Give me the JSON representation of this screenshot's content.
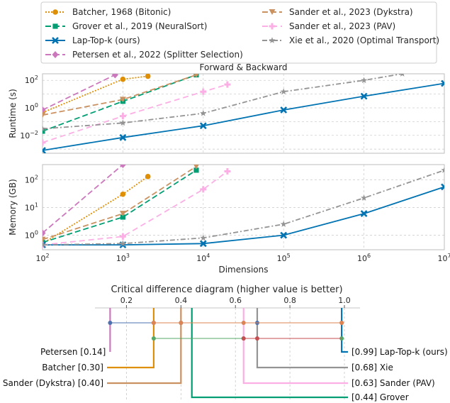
{
  "chart_data": [
    {
      "type": "line",
      "title": "Forward & Backward",
      "xlabel": "",
      "ylabel": "Runtime (s)",
      "xscale": "log",
      "yscale": "log",
      "xlim": [
        100,
        10000000
      ],
      "ylim": [
        0.0005,
        300
      ],
      "yticks": [
        {
          "v": 0.01,
          "b": "10",
          "e": "−2"
        },
        {
          "v": 1,
          "b": "10",
          "e": "0"
        },
        {
          "v": 100,
          "b": "10",
          "e": "2"
        }
      ],
      "grid": true,
      "series": [
        {
          "name": "Batcher, 1968 (Bitonic)",
          "color": "#de8f05",
          "dash": "2,2",
          "marker": "circle",
          "x": [
            100,
            1000,
            2048
          ],
          "y": [
            0.45,
            120,
            200
          ]
        },
        {
          "name": "Grover et al., 2019 (NeuralSort)",
          "color": "#029e73",
          "dash": "8,4",
          "marker": "square",
          "x": [
            100,
            1000,
            8192
          ],
          "y": [
            0.02,
            3,
            250
          ]
        },
        {
          "name": "Lap-Top-k (ours)",
          "color": "#0173b2",
          "dash": "",
          "marker": "x",
          "x": [
            100,
            1000,
            10000,
            100000,
            1000000,
            10000000
          ],
          "y": [
            0.0008,
            0.007,
            0.05,
            0.7,
            7,
            60
          ]
        },
        {
          "name": "Petersen et al., 2022 (Splitter Selection)",
          "color": "#cc78bc",
          "dash": "8,4",
          "marker": "diamond",
          "x": [
            100,
            800
          ],
          "y": [
            0.7,
            250
          ]
        },
        {
          "name": "Sander et al., 2023 (Dykstra)",
          "color": "#ca9161",
          "dash": "8,4",
          "marker": "triangle",
          "x": [
            100,
            1000,
            8192
          ],
          "y": [
            0.3,
            4,
            250
          ]
        },
        {
          "name": "Sander et al., 2023 (PAV)",
          "color": "#fbafe4",
          "dash": "8,5",
          "marker": "plus",
          "x": [
            100,
            1000,
            10000,
            20000
          ],
          "y": [
            0.003,
            0.25,
            15,
            50
          ]
        },
        {
          "name": "Xie et al., 2020 (Optimal Transport)",
          "color": "#949494",
          "dash": "7,3,2,3",
          "marker": "star",
          "x": [
            100,
            1000,
            10000,
            100000,
            1000000,
            3000000
          ],
          "y": [
            0.03,
            0.08,
            0.4,
            15,
            100,
            300
          ]
        }
      ]
    },
    {
      "type": "line",
      "title": "",
      "xlabel": "Dimensions",
      "ylabel": "Memory (GB)",
      "xscale": "log",
      "yscale": "log",
      "xlim": [
        100,
        10000000
      ],
      "ylim": [
        0.3,
        350
      ],
      "xticks": [
        {
          "v": 100,
          "b": "10",
          "e": "2"
        },
        {
          "v": 1000,
          "b": "10",
          "e": "3"
        },
        {
          "v": 10000,
          "b": "10",
          "e": "4"
        },
        {
          "v": 100000,
          "b": "10",
          "e": "5"
        },
        {
          "v": 1000000,
          "b": "10",
          "e": "6"
        },
        {
          "v": 10000000,
          "b": "10",
          "e": "7"
        }
      ],
      "yticks": [
        {
          "v": 1,
          "b": "10",
          "e": "0"
        },
        {
          "v": 10,
          "b": "10",
          "e": "1"
        },
        {
          "v": 100,
          "b": "10",
          "e": "2"
        }
      ],
      "grid": true,
      "series": [
        {
          "name": "Batcher, 1968 (Bitonic)",
          "color": "#de8f05",
          "dash": "2,2",
          "marker": "circle",
          "x": [
            100,
            1000,
            2048
          ],
          "y": [
            0.5,
            30,
            130
          ]
        },
        {
          "name": "Grover et al., 2019 (NeuralSort)",
          "color": "#029e73",
          "dash": "8,4",
          "marker": "square",
          "x": [
            100,
            1000,
            8192
          ],
          "y": [
            0.55,
            4.5,
            220
          ]
        },
        {
          "name": "Lap-Top-k (ours)",
          "color": "#0173b2",
          "dash": "",
          "marker": "x",
          "x": [
            100,
            1000,
            10000,
            100000,
            1000000,
            10000000
          ],
          "y": [
            0.45,
            0.45,
            0.5,
            1,
            6,
            55
          ]
        },
        {
          "name": "Petersen et al., 2022 (Splitter Selection)",
          "color": "#cc78bc",
          "dash": "8,4",
          "marker": "diamond",
          "x": [
            100,
            1000
          ],
          "y": [
            1.2,
            350
          ]
        },
        {
          "name": "Sander et al., 2023 (Dykstra)",
          "color": "#ca9161",
          "dash": "8,4",
          "marker": "triangle",
          "x": [
            100,
            1000,
            8192
          ],
          "y": [
            0.7,
            6,
            300
          ]
        },
        {
          "name": "Sander et al., 2023 (PAV)",
          "color": "#fbafe4",
          "dash": "8,5",
          "marker": "plus",
          "x": [
            100,
            1000,
            10000,
            20000
          ],
          "y": [
            0.45,
            0.9,
            45,
            200
          ]
        },
        {
          "name": "Xie et al., 2020 (Optimal Transport)",
          "color": "#949494",
          "dash": "7,3,2,3",
          "marker": "star",
          "x": [
            100,
            1000,
            10000,
            100000,
            1000000,
            10000000
          ],
          "y": [
            0.45,
            0.5,
            0.8,
            2.5,
            22,
            220
          ]
        }
      ]
    },
    {
      "type": "critical-difference",
      "title": "Critical difference diagram (higher value is better)",
      "axis_range": [
        0.1,
        1.0
      ],
      "ticks": [
        0.2,
        0.4,
        0.6,
        0.8,
        1.0
      ],
      "tick_labels": [
        "0.2",
        "0.4",
        "0.6",
        "0.8",
        "1.0"
      ],
      "methods": [
        {
          "label": "Petersen [0.14]",
          "value": 0.14,
          "color": "#cc78bc",
          "side": "left"
        },
        {
          "label": "Batcher [0.30]",
          "value": 0.3,
          "color": "#de8f05",
          "side": "left"
        },
        {
          "label": "Sander (Dykstra) [0.40]",
          "value": 0.4,
          "color": "#ca9161",
          "side": "left"
        },
        {
          "label": "[0.44] Grover",
          "value": 0.44,
          "color": "#029e73",
          "side": "right"
        },
        {
          "label": "[0.63] Sander (PAV)",
          "value": 0.63,
          "color": "#fbafe4",
          "side": "right"
        },
        {
          "label": "[0.68] Xie",
          "value": 0.68,
          "color": "#949494",
          "side": "right"
        },
        {
          "label": "[0.99] Lap-Top-k (ours)",
          "value": 0.99,
          "color": "#0173b2",
          "side": "right"
        }
      ],
      "cliques": [
        {
          "from": 0.14,
          "to": 0.99,
          "color": "#4c72b0",
          "members": [
            0.14,
            0.3,
            0.4,
            0.68,
            0.99
          ]
        },
        {
          "from": 0.3,
          "to": 0.99,
          "color": "#dd8452",
          "members": [
            0.3,
            0.4,
            0.63,
            0.99
          ]
        },
        {
          "from": 0.3,
          "to": 0.99,
          "color": "#55a868",
          "members": [
            0.3,
            0.63,
            0.99
          ]
        },
        {
          "from": 0.63,
          "to": 0.99,
          "color": "#c44e52",
          "members": [
            0.63,
            0.68
          ]
        }
      ]
    }
  ]
}
